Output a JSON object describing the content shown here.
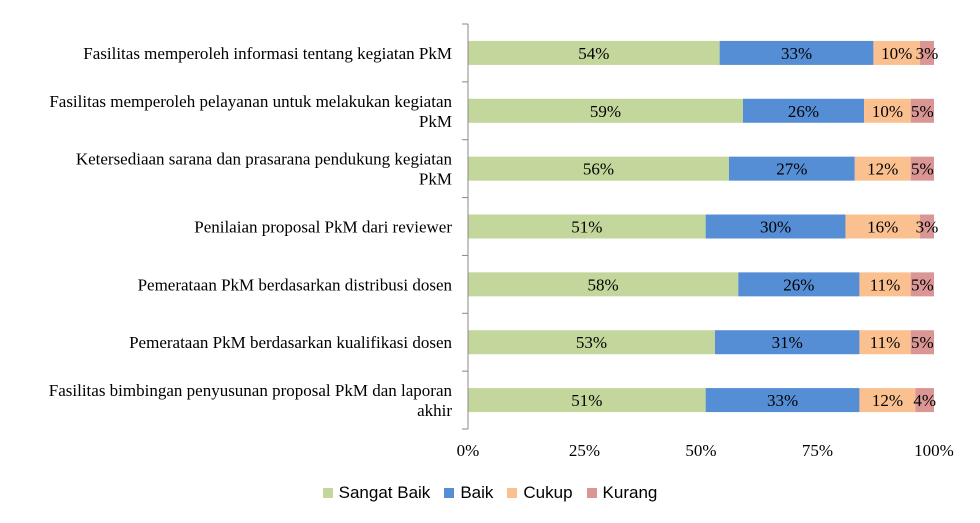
{
  "chart_data": {
    "type": "bar",
    "orientation": "horizontal",
    "stacked": true,
    "title": "",
    "xlabel": "",
    "ylabel": "",
    "xlim": [
      0,
      100
    ],
    "x_ticks": [
      "0%",
      "25%",
      "50%",
      "75%",
      "100%"
    ],
    "categories": [
      [
        "Fasilitas memperoleh informasi tentang kegiatan PkM"
      ],
      [
        "Fasilitas memperoleh pelayanan untuk melakukan kegiatan",
        "PkM"
      ],
      [
        "Ketersediaan sarana dan prasarana pendukung kegiatan",
        "PkM"
      ],
      [
        "Penilaian proposal PkM dari reviewer"
      ],
      [
        "Pemerataan PkM berdasarkan distribusi dosen"
      ],
      [
        "Pemerataan PkM berdasarkan kualifikasi dosen"
      ],
      [
        "Fasilitas bimbingan penyusunan proposal PkM dan laporan",
        "akhir"
      ]
    ],
    "series": [
      {
        "name": "Sangat Baik",
        "color": "#c3d69b",
        "values": [
          54,
          59,
          56,
          51,
          58,
          53,
          51
        ]
      },
      {
        "name": "Baik",
        "color": "#558ed5",
        "values": [
          33,
          26,
          27,
          30,
          26,
          31,
          33
        ]
      },
      {
        "name": "Cukup",
        "color": "#fac090",
        "values": [
          10,
          10,
          12,
          16,
          11,
          11,
          12
        ]
      },
      {
        "name": "Kurang",
        "color": "#d99694",
        "values": [
          3,
          5,
          5,
          3,
          5,
          5,
          4
        ]
      }
    ],
    "legend_position": "bottom",
    "grid": false
  }
}
